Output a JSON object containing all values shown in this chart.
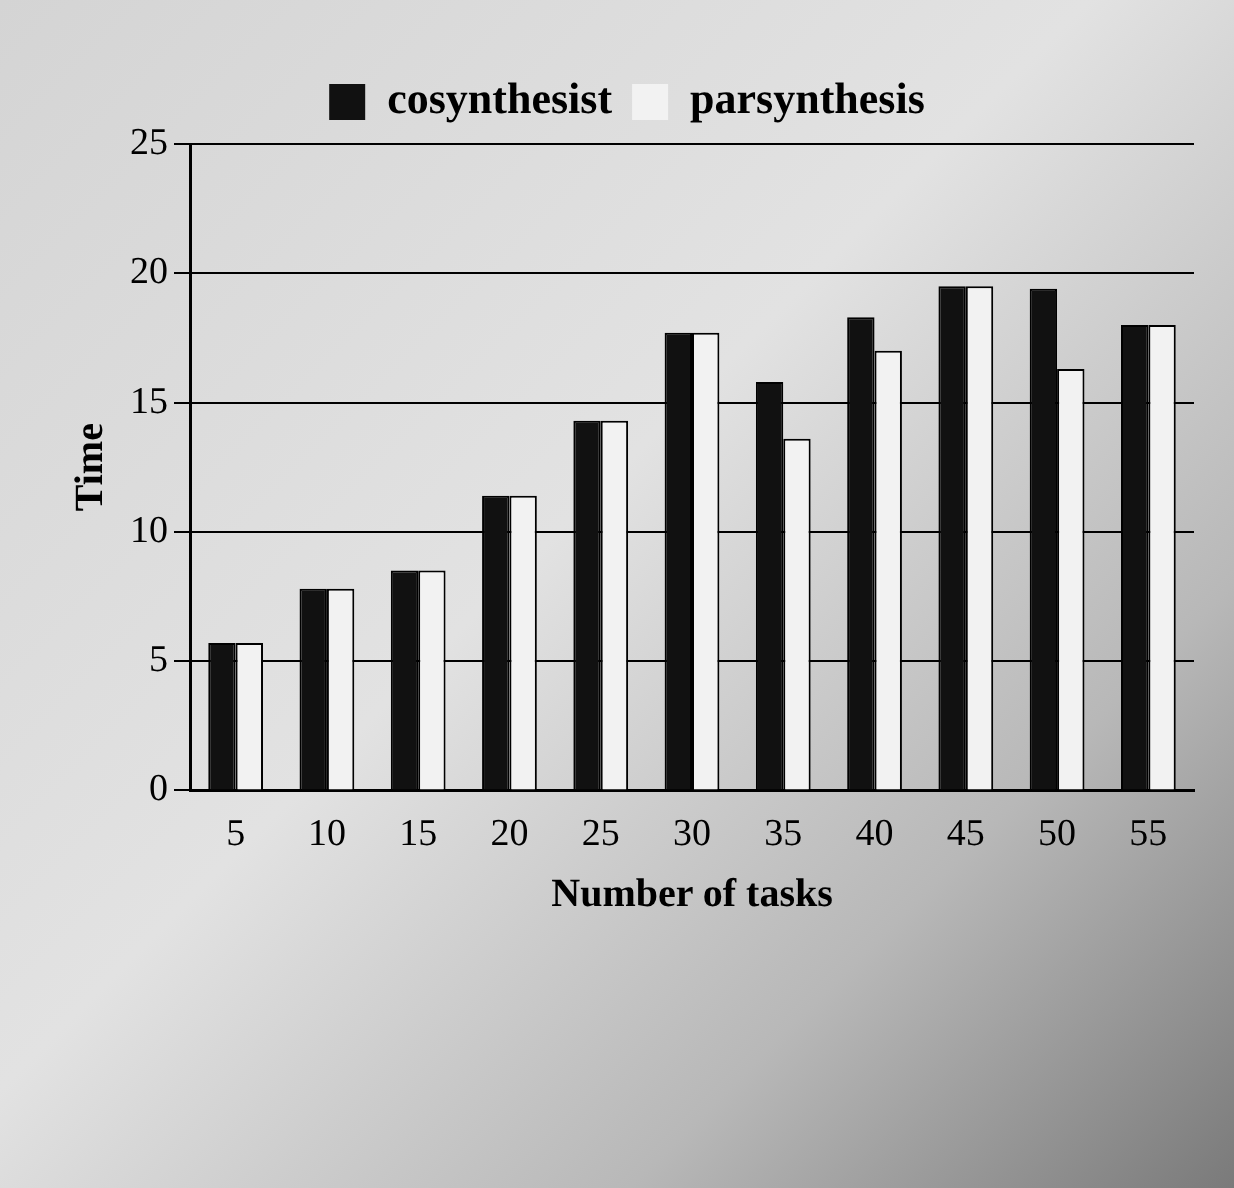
{
  "chart_data": {
    "type": "bar",
    "xlabel": "Number of tasks",
    "ylabel": "Time",
    "categories": [
      "5",
      "10",
      "15",
      "20",
      "25",
      "30",
      "35",
      "40",
      "45",
      "50",
      "55"
    ],
    "series": [
      {
        "name": "cosynthesist",
        "color": "#111111",
        "values": [
          5.7,
          7.8,
          8.5,
          11.4,
          14.3,
          17.7,
          15.8,
          18.3,
          19.5,
          19.4,
          18.0
        ]
      },
      {
        "name": "parsynthesis",
        "color": "#f2f2f2",
        "values": [
          5.7,
          7.8,
          8.5,
          11.4,
          14.3,
          17.7,
          13.6,
          17.0,
          19.5,
          16.3,
          18.0
        ]
      }
    ],
    "ylim": [
      0,
      25
    ],
    "yticks": [
      0,
      5,
      10,
      15,
      20,
      25
    ],
    "grid": "y",
    "legend": "top"
  }
}
